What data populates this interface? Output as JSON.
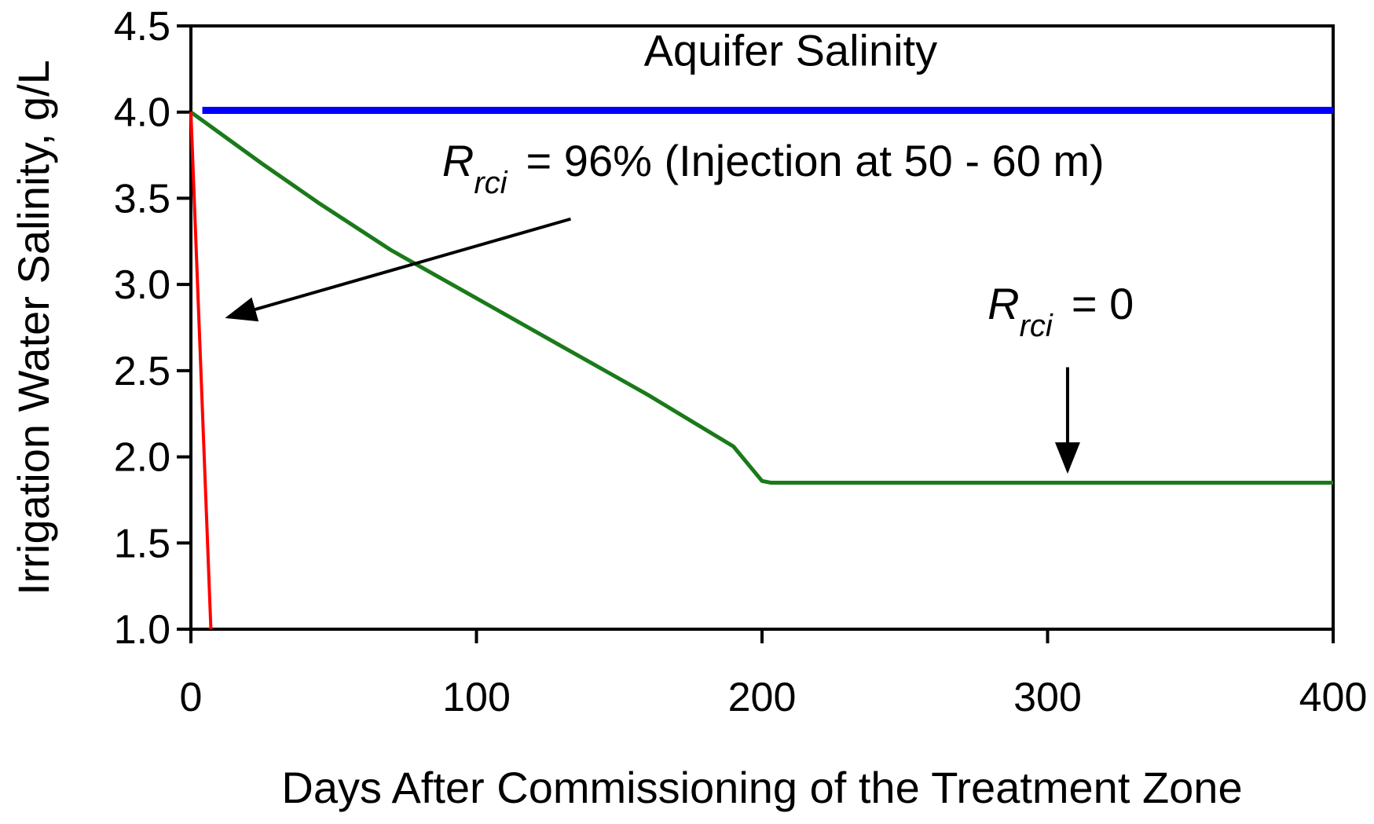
{
  "chart_data": {
    "type": "line",
    "title": "",
    "xlabel": "Days After Commissioning of the Treatment Zone",
    "ylabel": "Irrigation Water Salinity, g/L",
    "xlim": [
      0,
      400
    ],
    "ylim": [
      1.0,
      4.5
    ],
    "x_ticks": [
      "0",
      "100",
      "200",
      "300",
      "400"
    ],
    "y_ticks": [
      "1.0",
      "1.5",
      "2.0",
      "2.5",
      "3.0",
      "3.5",
      "4.0",
      "4.5"
    ],
    "x_tick_values": [
      0,
      100,
      200,
      300,
      400
    ],
    "y_tick_values": [
      1.0,
      1.5,
      2.0,
      2.5,
      3.0,
      3.5,
      4.0,
      4.5
    ],
    "grid": false,
    "series": [
      {
        "color": "#0000ff",
        "points": [
          [
            4,
            4.01
          ],
          [
            400,
            4.01
          ]
        ]
      },
      {
        "color": "#1a7a1a",
        "points": [
          [
            0,
            4.0
          ],
          [
            10,
            3.88
          ],
          [
            25,
            3.7
          ],
          [
            45,
            3.47
          ],
          [
            70,
            3.2
          ],
          [
            100,
            2.92
          ],
          [
            130,
            2.64
          ],
          [
            160,
            2.36
          ],
          [
            190,
            2.06
          ],
          [
            200,
            1.86
          ],
          [
            203,
            1.85
          ],
          [
            400,
            1.85
          ]
        ]
      },
      {
        "color": "#ff0000",
        "points": [
          [
            0,
            4.0
          ],
          [
            7,
            1.0
          ]
        ]
      }
    ],
    "annotations": {
      "aquifer": {
        "text": "Aquifer Salinity",
        "x": 210,
        "y": 4.27
      },
      "rrci96": {
        "r": "R",
        "sub": "rci",
        "rest": "= 96% (Injection at 50 - 60 m)",
        "x": 88,
        "y": 3.63
      },
      "rrci0": {
        "r": "R",
        "sub": "rci",
        "rest": "= 0",
        "x": 279,
        "y": 2.8
      }
    },
    "arrows": [
      {
        "from": [
          133,
          3.38
        ],
        "to": [
          13,
          2.81
        ]
      },
      {
        "from": [
          307,
          2.52
        ],
        "to": [
          307,
          1.92
        ]
      }
    ]
  }
}
